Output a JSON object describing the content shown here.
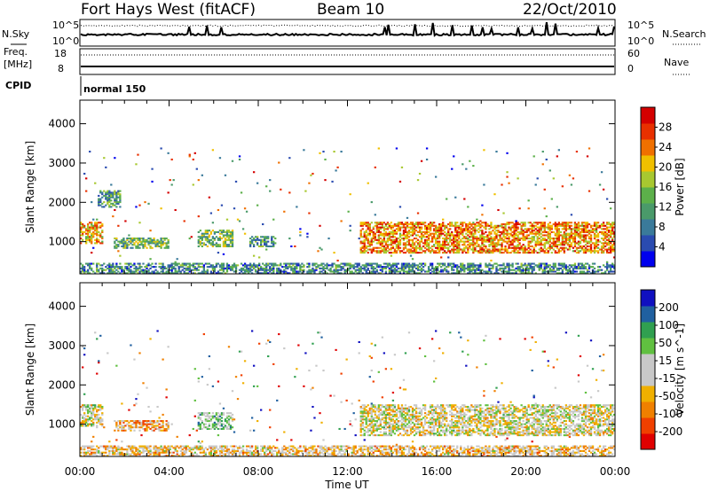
{
  "header": {
    "station": "Fort Hays West (fitACF)",
    "beam": "Beam 10",
    "date": "22/Oct/2010"
  },
  "top_panels": {
    "nsky_label": "N.Sky",
    "nsearch_label": "N.Search",
    "noise_ticks_left": [
      "10^5",
      "10^0"
    ],
    "noise_ticks_right": [
      "10^5",
      "10^0"
    ],
    "freq_label_line1": "Freq.",
    "freq_label_line2": "[MHz]",
    "freq_ticks": [
      "18",
      "8"
    ],
    "nave_label": "Nave",
    "nave_ticks": [
      "60",
      "0"
    ],
    "cpid_label": "CPID",
    "cpid_value": "normal 150"
  },
  "chart_data": [
    {
      "type": "heatmap",
      "name": "power",
      "xlabel": "",
      "ylabel": "Slant Range [km]",
      "x_range_hours": [
        0,
        24
      ],
      "ylim": [
        180,
        4600
      ],
      "yticks": [
        1000,
        2000,
        3000,
        4000
      ],
      "colorbar": {
        "label": "Power [dB]",
        "range": [
          0,
          32
        ],
        "ticks": [
          "28",
          "24",
          "20",
          "16",
          "12",
          "8",
          "4"
        ],
        "colors": [
          "#0000ee",
          "#2a4bb0",
          "#3a7a9a",
          "#4a9a6a",
          "#5cb04a",
          "#a8c830",
          "#f0c000",
          "#f07000",
          "#e83000",
          "#d40000"
        ]
      },
      "regions": [
        {
          "t": [
            0.0,
            1.0
          ],
          "r": [
            950,
            1500
          ],
          "level": 0.68
        },
        {
          "t": [
            0.8,
            1.8
          ],
          "r": [
            1850,
            2300
          ],
          "level": 0.35
        },
        {
          "t": [
            1.5,
            4.0
          ],
          "r": [
            820,
            1100
          ],
          "level": 0.42
        },
        {
          "t": [
            5.3,
            6.9
          ],
          "r": [
            880,
            1300
          ],
          "level": 0.45
        },
        {
          "t": [
            7.6,
            8.8
          ],
          "r": [
            880,
            1150
          ],
          "level": 0.35
        },
        {
          "t": [
            12.6,
            24.0
          ],
          "r": [
            700,
            1500
          ],
          "level": 0.72
        },
        {
          "t": [
            0.0,
            24.0
          ],
          "r": [
            200,
            450
          ],
          "level": 0.3
        }
      ]
    },
    {
      "type": "heatmap",
      "name": "velocity",
      "xlabel": "Time UT",
      "ylabel": "Slant Range [km]",
      "x_range_hours": [
        0,
        24
      ],
      "xticks": [
        "00:00",
        "04:00",
        "08:00",
        "12:00",
        "16:00",
        "20:00",
        "00:00"
      ],
      "ylim": [
        180,
        4600
      ],
      "yticks": [
        1000,
        2000,
        3000,
        4000
      ],
      "colorbar": {
        "label": "Velocity [m s^-1]",
        "range": [
          -250,
          250
        ],
        "ticks": [
          "200",
          "100",
          "50",
          "15",
          "-15",
          "-50",
          "-100",
          "-200"
        ],
        "colors": [
          "#e00000",
          "#f04000",
          "#f08000",
          "#f0b000",
          "#c8c8c8",
          "#c8c8c8",
          "#60c040",
          "#30a050",
          "#2060a0",
          "#1010c0"
        ]
      },
      "regions": [
        {
          "t": [
            0.0,
            1.0
          ],
          "r": [
            950,
            1500
          ],
          "level": 0.5
        },
        {
          "t": [
            1.5,
            4.0
          ],
          "r": [
            820,
            1100
          ],
          "level": 0.35
        },
        {
          "t": [
            5.3,
            6.9
          ],
          "r": [
            880,
            1300
          ],
          "level": 0.62
        },
        {
          "t": [
            12.6,
            24.0
          ],
          "r": [
            700,
            1500
          ],
          "level": 0.48
        },
        {
          "t": [
            0.0,
            24.0
          ],
          "r": [
            200,
            450
          ],
          "level": 0.4
        }
      ]
    }
  ]
}
